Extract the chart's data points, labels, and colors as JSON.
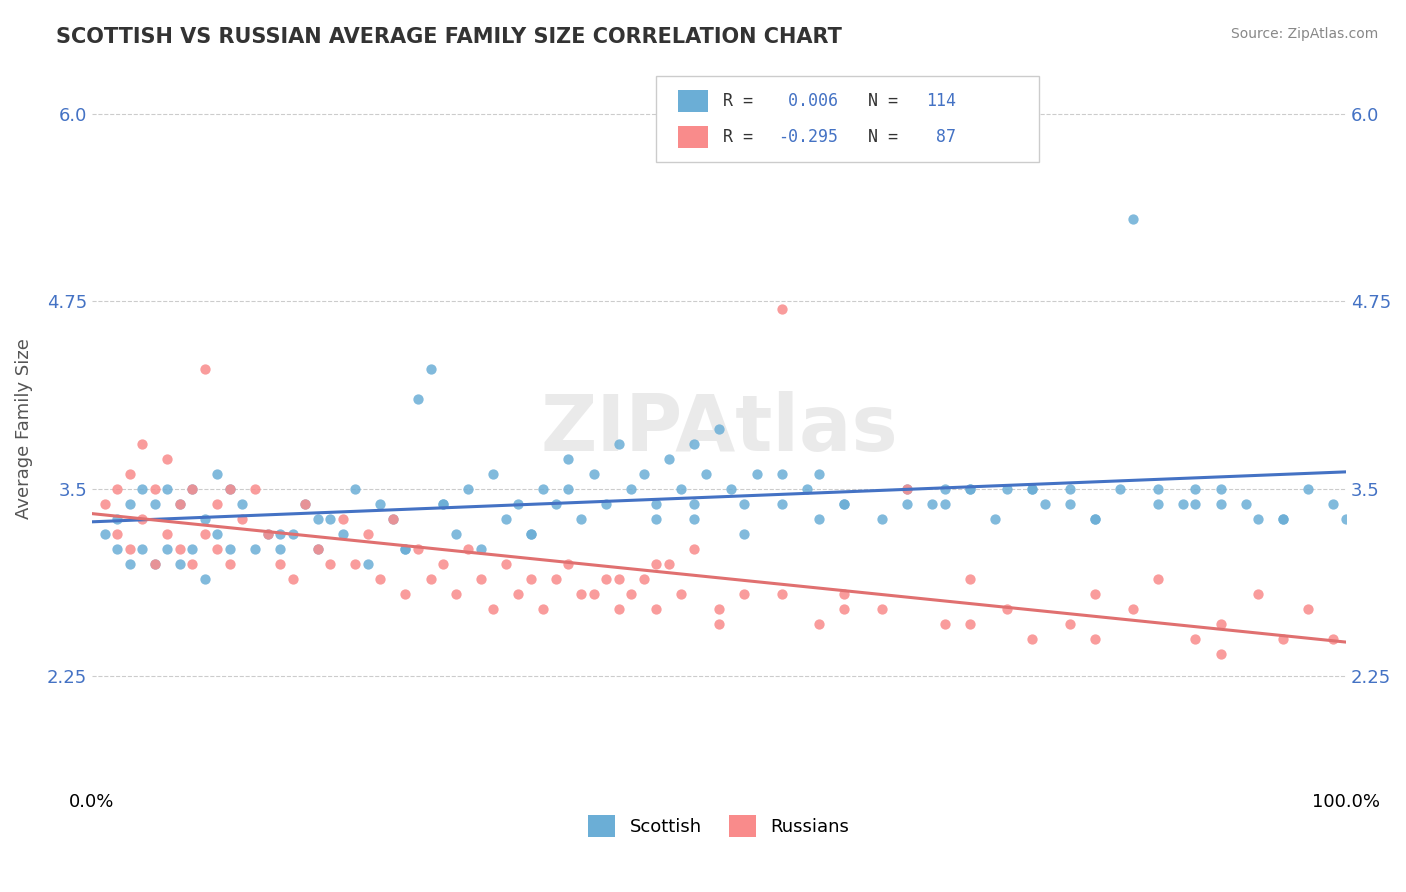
{
  "title": "SCOTTISH VS RUSSIAN AVERAGE FAMILY SIZE CORRELATION CHART",
  "source": "Source: ZipAtlas.com",
  "xlabel": "",
  "ylabel": "Average Family Size",
  "xlim": [
    0,
    1
  ],
  "ylim": [
    1.5,
    6.3
  ],
  "yticks": [
    2.25,
    3.5,
    4.75,
    6.0
  ],
  "xticks": [
    0.0,
    1.0
  ],
  "xticklabels": [
    "0.0%",
    "100.0%"
  ],
  "scottish_color": "#6baed6",
  "russian_color": "#f98b8b",
  "scottish_R": 0.006,
  "scottish_N": 114,
  "russian_R": -0.295,
  "russian_N": 87,
  "legend_label_scottish": "Scottish",
  "legend_label_russian": "Russians",
  "watermark": "ZIPAtlas",
  "background_color": "#ffffff",
  "grid_color": "#cccccc",
  "title_color": "#333333",
  "label_color": "#4472c4",
  "scottish_points_x": [
    0.01,
    0.02,
    0.02,
    0.03,
    0.03,
    0.04,
    0.04,
    0.05,
    0.05,
    0.06,
    0.06,
    0.07,
    0.07,
    0.08,
    0.08,
    0.09,
    0.09,
    0.1,
    0.1,
    0.11,
    0.11,
    0.12,
    0.13,
    0.14,
    0.15,
    0.16,
    0.17,
    0.18,
    0.19,
    0.2,
    0.21,
    0.22,
    0.23,
    0.24,
    0.25,
    0.26,
    0.27,
    0.28,
    0.29,
    0.3,
    0.31,
    0.32,
    0.33,
    0.34,
    0.35,
    0.36,
    0.37,
    0.38,
    0.39,
    0.4,
    0.41,
    0.42,
    0.43,
    0.44,
    0.45,
    0.46,
    0.47,
    0.48,
    0.49,
    0.5,
    0.51,
    0.52,
    0.53,
    0.55,
    0.57,
    0.58,
    0.6,
    0.62,
    0.63,
    0.65,
    0.67,
    0.68,
    0.7,
    0.72,
    0.73,
    0.75,
    0.76,
    0.78,
    0.8,
    0.82,
    0.83,
    0.85,
    0.87,
    0.88,
    0.9,
    0.92,
    0.93,
    0.95,
    0.97,
    0.99,
    1.0,
    0.15,
    0.25,
    0.35,
    0.45,
    0.55,
    0.6,
    0.7,
    0.8,
    0.9,
    0.48,
    0.52,
    0.65,
    0.75,
    0.85,
    0.18,
    0.28,
    0.38,
    0.48,
    0.58,
    0.68,
    0.78,
    0.88,
    0.95
  ],
  "scottish_points_y": [
    3.2,
    3.1,
    3.3,
    3.0,
    3.4,
    3.1,
    3.5,
    3.0,
    3.4,
    3.1,
    3.5,
    3.0,
    3.4,
    3.1,
    3.5,
    2.9,
    3.3,
    3.2,
    3.6,
    3.1,
    3.5,
    3.4,
    3.1,
    3.2,
    3.1,
    3.2,
    3.4,
    3.1,
    3.3,
    3.2,
    3.5,
    3.0,
    3.4,
    3.3,
    3.1,
    4.1,
    4.3,
    3.4,
    3.2,
    3.5,
    3.1,
    3.6,
    3.3,
    3.4,
    3.2,
    3.5,
    3.4,
    3.7,
    3.3,
    3.6,
    3.4,
    3.8,
    3.5,
    3.6,
    3.4,
    3.7,
    3.5,
    3.8,
    3.6,
    3.9,
    3.5,
    3.4,
    3.6,
    3.4,
    3.5,
    3.6,
    3.4,
    5.8,
    3.3,
    3.5,
    3.4,
    3.5,
    3.5,
    3.3,
    3.5,
    3.5,
    3.4,
    3.4,
    3.3,
    3.5,
    5.3,
    3.5,
    3.4,
    3.5,
    3.5,
    3.4,
    3.3,
    3.3,
    3.5,
    3.4,
    3.3,
    3.2,
    3.1,
    3.2,
    3.3,
    3.6,
    3.4,
    3.5,
    3.3,
    3.4,
    3.3,
    3.2,
    3.4,
    3.5,
    3.4,
    3.3,
    3.4,
    3.5,
    3.4,
    3.3,
    3.4,
    3.5,
    3.4,
    3.3
  ],
  "russian_points_x": [
    0.01,
    0.02,
    0.02,
    0.03,
    0.03,
    0.04,
    0.04,
    0.05,
    0.05,
    0.06,
    0.06,
    0.07,
    0.07,
    0.08,
    0.08,
    0.09,
    0.09,
    0.1,
    0.1,
    0.11,
    0.11,
    0.12,
    0.13,
    0.14,
    0.15,
    0.16,
    0.17,
    0.18,
    0.19,
    0.2,
    0.21,
    0.22,
    0.23,
    0.24,
    0.25,
    0.26,
    0.27,
    0.28,
    0.29,
    0.3,
    0.31,
    0.32,
    0.33,
    0.34,
    0.35,
    0.36,
    0.37,
    0.38,
    0.39,
    0.4,
    0.41,
    0.42,
    0.43,
    0.44,
    0.45,
    0.46,
    0.47,
    0.48,
    0.5,
    0.52,
    0.55,
    0.58,
    0.6,
    0.63,
    0.65,
    0.68,
    0.7,
    0.73,
    0.75,
    0.78,
    0.8,
    0.83,
    0.85,
    0.88,
    0.9,
    0.93,
    0.95,
    0.97,
    0.99,
    0.45,
    0.55,
    0.6,
    0.7,
    0.8,
    0.9,
    0.42,
    0.5
  ],
  "russian_points_y": [
    3.4,
    3.2,
    3.5,
    3.1,
    3.6,
    3.3,
    3.8,
    3.0,
    3.5,
    3.2,
    3.7,
    3.1,
    3.4,
    3.0,
    3.5,
    3.2,
    4.3,
    3.1,
    3.4,
    3.0,
    3.5,
    3.3,
    3.5,
    3.2,
    3.0,
    2.9,
    3.4,
    3.1,
    3.0,
    3.3,
    3.0,
    3.2,
    2.9,
    3.3,
    2.8,
    3.1,
    2.9,
    3.0,
    2.8,
    3.1,
    2.9,
    2.7,
    3.0,
    2.8,
    2.9,
    2.7,
    2.9,
    3.0,
    2.8,
    2.8,
    2.9,
    2.7,
    2.8,
    2.9,
    2.7,
    3.0,
    2.8,
    3.1,
    2.7,
    2.8,
    4.7,
    2.6,
    2.8,
    2.7,
    3.5,
    2.6,
    2.9,
    2.7,
    2.5,
    2.6,
    2.8,
    2.7,
    2.9,
    2.5,
    2.6,
    2.8,
    2.5,
    2.7,
    2.5,
    3.0,
    2.8,
    2.7,
    2.6,
    2.5,
    2.4,
    2.9,
    2.6
  ]
}
